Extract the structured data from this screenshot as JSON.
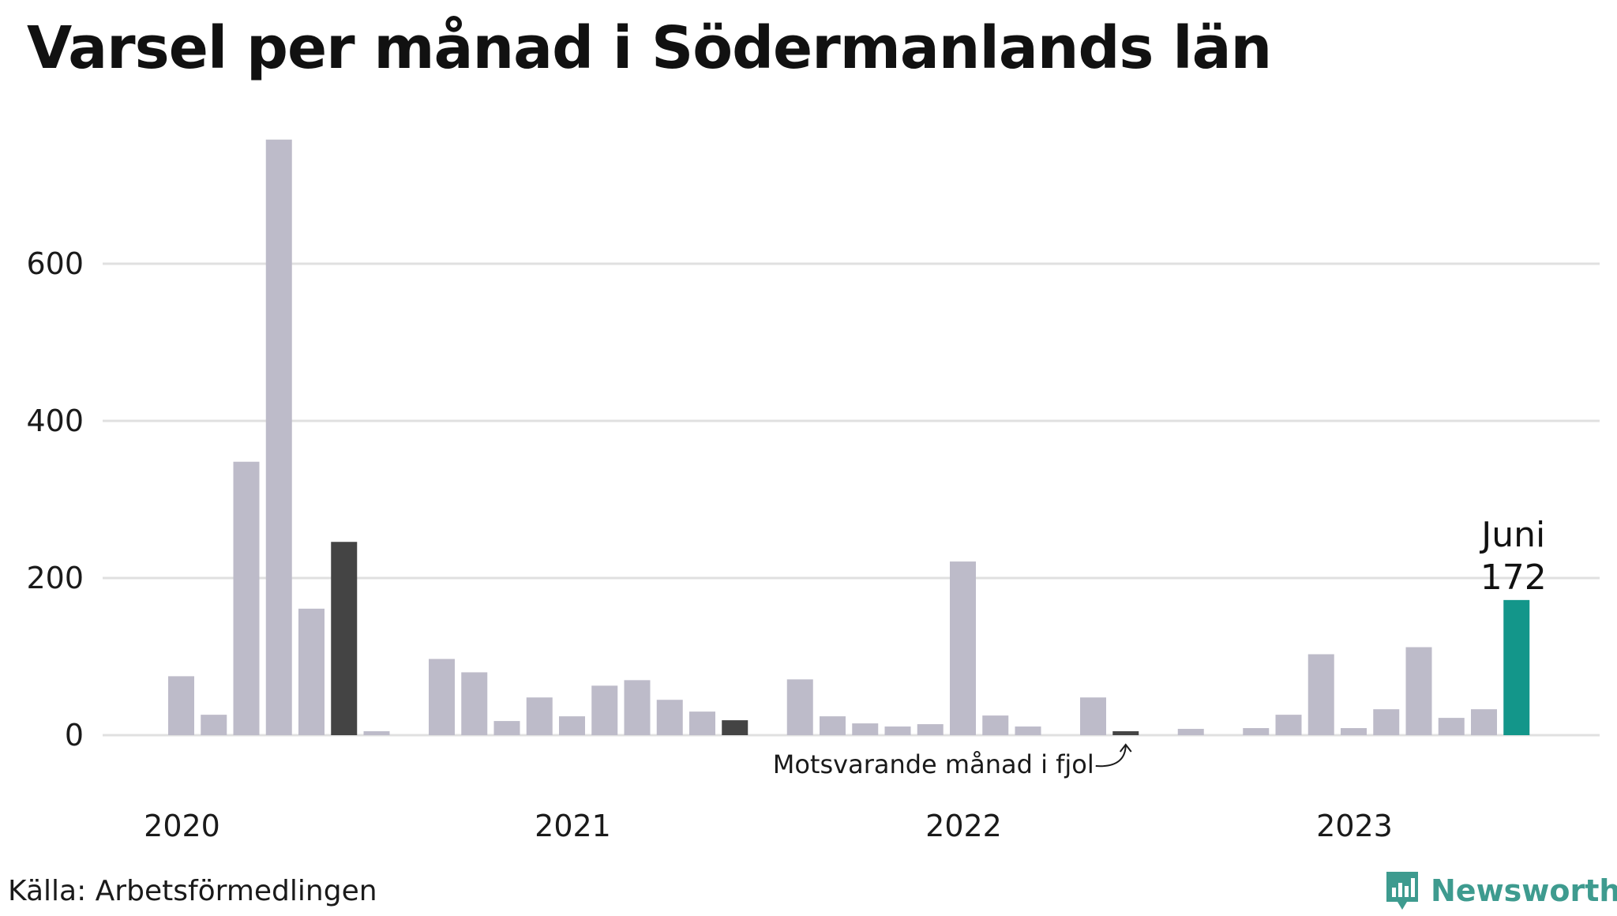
{
  "title": "Varsel per månad i Södermanlands län",
  "source": "Källa: Arbetsförmedlingen",
  "brand": {
    "name": "Newsworthy",
    "icon": "newsworthy-chart-icon",
    "color": "#3e9b8f"
  },
  "colors": {
    "default": "#bdbbc9",
    "previous_year": "#444444",
    "current": "#13968a",
    "grid": "#e0e0e0"
  },
  "chart_data": {
    "type": "bar",
    "title": "Varsel per månad i Södermanlands län",
    "xlabel": "",
    "ylabel": "",
    "ylim": [
      0,
      780
    ],
    "yticks": [
      0,
      200,
      400,
      600
    ],
    "grid": true,
    "year_labels": [
      {
        "label": "2020",
        "index": 0
      },
      {
        "label": "2021",
        "index": 12
      },
      {
        "label": "2022",
        "index": 24
      },
      {
        "label": "2023",
        "index": 36
      }
    ],
    "categories": [
      "2020-01",
      "2020-02",
      "2020-03",
      "2020-04",
      "2020-05",
      "2020-06",
      "2020-07",
      "2020-08",
      "2020-09",
      "2020-10",
      "2020-11",
      "2020-12",
      "2021-01",
      "2021-02",
      "2021-03",
      "2021-04",
      "2021-05",
      "2021-06",
      "2021-07",
      "2021-08",
      "2021-09",
      "2021-10",
      "2021-11",
      "2021-12",
      "2022-01",
      "2022-02",
      "2022-03",
      "2022-04",
      "2022-05",
      "2022-06",
      "2022-07",
      "2022-08",
      "2022-09",
      "2022-10",
      "2022-11",
      "2022-12",
      "2023-01",
      "2023-02",
      "2023-03",
      "2023-04",
      "2023-05",
      "2023-06"
    ],
    "values": [
      75,
      26,
      348,
      758,
      161,
      246,
      5,
      0,
      97,
      80,
      18,
      48,
      24,
      63,
      70,
      45,
      30,
      19,
      0,
      71,
      24,
      15,
      11,
      14,
      221,
      25,
      11,
      0,
      48,
      5,
      0,
      8,
      0,
      9,
      26,
      103,
      9,
      33,
      112,
      22,
      33,
      172
    ],
    "highlight": {
      "previous_year_indices": [
        5,
        17,
        29
      ],
      "current_index": 41,
      "current_label": "Juni",
      "current_value_label": "172"
    },
    "annotation": {
      "text": "Motsvarande månad i fjol",
      "target_index": 29
    }
  }
}
